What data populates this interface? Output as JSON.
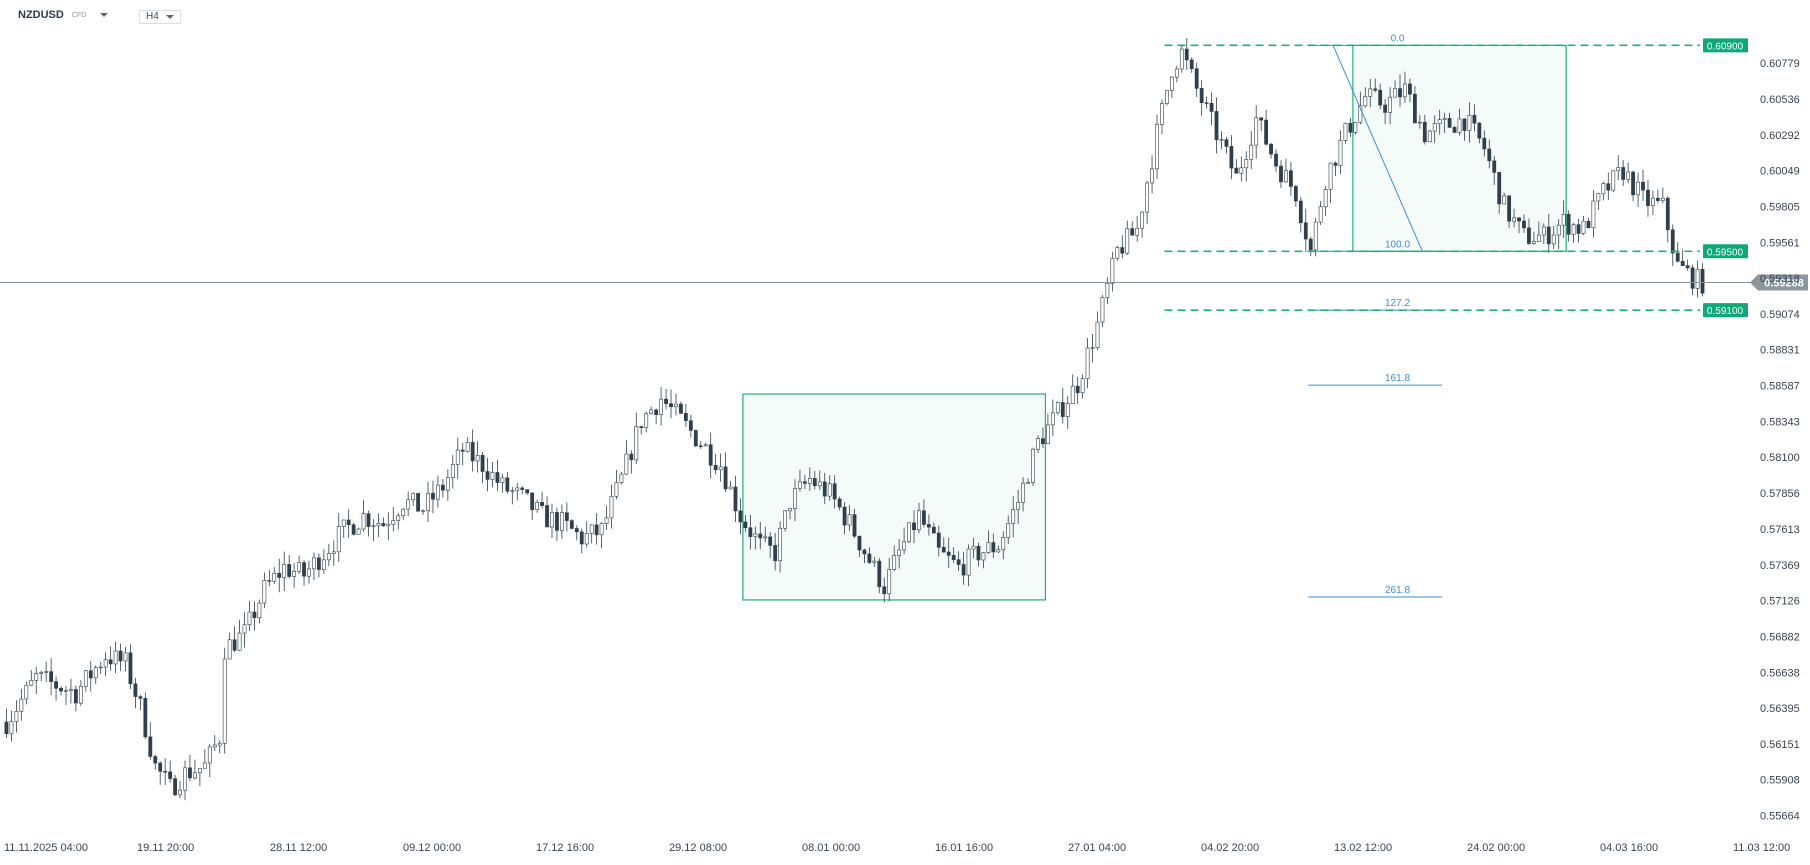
{
  "header": {
    "symbol": "NZDUSD",
    "symbol_type": "CFD",
    "timeframe": "H4"
  },
  "colors": {
    "candle": "#2f3f4d",
    "zone": "#20b07a",
    "fib": "#3a8fd6",
    "badge": "#0fa878",
    "price_badge": "#8c969e"
  },
  "chart_data": {
    "type": "candlestick",
    "y_range": [
      0.556,
      0.6095
    ],
    "y_ticks": [
      "0.60779",
      "0.60536",
      "0.60292",
      "0.60049",
      "0.59805",
      "0.59561",
      "0.59318",
      "0.59074",
      "0.58831",
      "0.58587",
      "0.58343",
      "0.58100",
      "0.57856",
      "0.57613",
      "0.57369",
      "0.57126",
      "0.56882",
      "0.56638",
      "0.56395",
      "0.56151",
      "0.55908",
      "0.55664"
    ],
    "x_ticks": [
      "11.11.2025  04:00",
      "19.11  20:00",
      "28.11  12:00",
      "09.12  00:00",
      "17.12  16:00",
      "29.12  08:00",
      "08.01  00:00",
      "16.01  16:00",
      "27.01  04:00",
      "04.02  20:00",
      "13.02  12:00",
      "24.02  00:00",
      "04.03  16:00",
      "11.03  12:00"
    ],
    "current_price": "0.59288",
    "price_path": [
      [
        0,
        0.563
      ],
      [
        6,
        0.566
      ],
      [
        14,
        0.565
      ],
      [
        20,
        0.5675
      ],
      [
        24,
        0.567
      ],
      [
        27,
        0.564
      ],
      [
        30,
        0.56
      ],
      [
        33,
        0.5585
      ],
      [
        36,
        0.5595
      ],
      [
        40,
        0.56
      ],
      [
        43,
        0.562
      ],
      [
        44,
        0.568
      ],
      [
        48,
        0.569
      ],
      [
        52,
        0.572
      ],
      [
        56,
        0.5735
      ],
      [
        60,
        0.573
      ],
      [
        64,
        0.5745
      ],
      [
        68,
        0.576
      ],
      [
        72,
        0.577
      ],
      [
        76,
        0.5765
      ],
      [
        80,
        0.578
      ],
      [
        84,
        0.5775
      ],
      [
        88,
        0.579
      ],
      [
        92,
        0.5815
      ],
      [
        96,
        0.5805
      ],
      [
        100,
        0.579
      ],
      [
        104,
        0.5782
      ],
      [
        108,
        0.577
      ],
      [
        112,
        0.5765
      ],
      [
        116,
        0.5755
      ],
      [
        120,
        0.576
      ],
      [
        124,
        0.5795
      ],
      [
        128,
        0.5835
      ],
      [
        132,
        0.585
      ],
      [
        136,
        0.5835
      ],
      [
        140,
        0.582
      ],
      [
        144,
        0.5805
      ],
      [
        148,
        0.577
      ],
      [
        152,
        0.575
      ],
      [
        155,
        0.5745
      ],
      [
        158,
        0.578
      ],
      [
        162,
        0.5795
      ],
      [
        166,
        0.5785
      ],
      [
        170,
        0.5765
      ],
      [
        174,
        0.574
      ],
      [
        177,
        0.5722
      ],
      [
        180,
        0.5745
      ],
      [
        184,
        0.577
      ],
      [
        188,
        0.5745
      ],
      [
        192,
        0.5735
      ],
      [
        196,
        0.5745
      ],
      [
        200,
        0.575
      ],
      [
        204,
        0.578
      ],
      [
        208,
        0.582
      ],
      [
        212,
        0.584
      ],
      [
        216,
        0.586
      ],
      [
        220,
        0.59
      ],
      [
        224,
        0.595
      ],
      [
        228,
        0.5965
      ],
      [
        232,
        0.603
      ],
      [
        235,
        0.6075
      ],
      [
        237,
        0.6085
      ],
      [
        240,
        0.606
      ],
      [
        244,
        0.603
      ],
      [
        248,
        0.6
      ],
      [
        252,
        0.604
      ],
      [
        256,
        0.601
      ],
      [
        260,
        0.599
      ],
      [
        263,
        0.595
      ],
      [
        266,
        0.6
      ],
      [
        270,
        0.603
      ],
      [
        274,
        0.6055
      ],
      [
        278,
        0.605
      ],
      [
        282,
        0.606
      ],
      [
        286,
        0.603
      ],
      [
        290,
        0.6035
      ],
      [
        294,
        0.604
      ],
      [
        298,
        0.602
      ],
      [
        302,
        0.598
      ],
      [
        306,
        0.596
      ],
      [
        310,
        0.596
      ],
      [
        314,
        0.597
      ],
      [
        318,
        0.5965
      ],
      [
        322,
        0.599
      ],
      [
        326,
        0.6005
      ],
      [
        330,
        0.5985
      ],
      [
        334,
        0.598
      ],
      [
        337,
        0.594
      ],
      [
        341,
        0.593
      ],
      [
        342,
        0.5929
      ]
    ],
    "levels": [
      {
        "value": 0.609,
        "label": "0.60900"
      },
      {
        "value": 0.595,
        "label": "0.59500"
      },
      {
        "value": 0.591,
        "label": "0.59100"
      }
    ],
    "fib_labels": [
      "0.0",
      "100.0",
      "127.2",
      "161.8",
      "261.8"
    ]
  }
}
